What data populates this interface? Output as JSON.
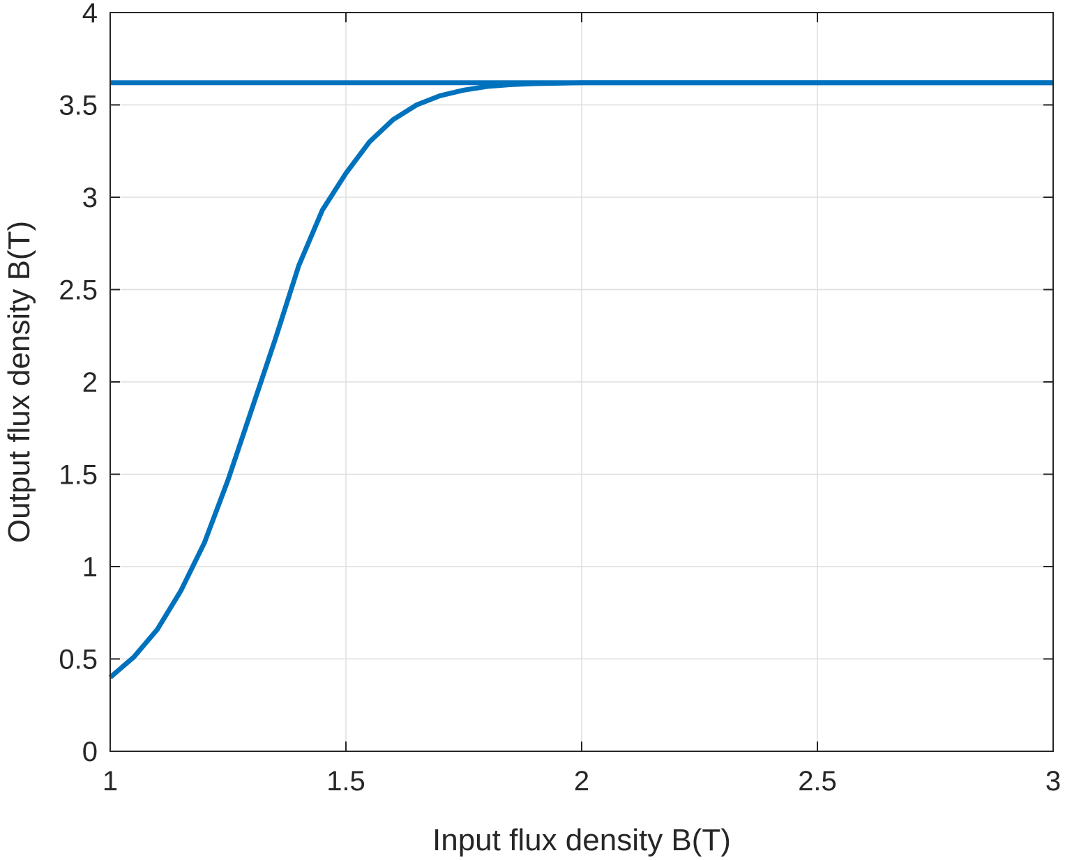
{
  "chart_data": {
    "type": "line",
    "title": "",
    "xlabel": "Input flux density B(T)",
    "ylabel": "Output flux density B(T)",
    "xlim": [
      1,
      3
    ],
    "ylim": [
      0,
      4
    ],
    "xticks": [
      1,
      1.5,
      2,
      2.5,
      3
    ],
    "xtick_labels": [
      "1",
      "1.5",
      "2",
      "2.5",
      "3"
    ],
    "yticks": [
      0,
      0.5,
      1,
      1.5,
      2,
      2.5,
      3,
      3.5,
      4
    ],
    "ytick_labels": [
      "0",
      "0.5",
      "1",
      "1.5",
      "2",
      "2.5",
      "3",
      "3.5",
      "4"
    ],
    "grid": true,
    "legend": "none",
    "line_color": "#0072BD",
    "series": [
      {
        "x": [
          1.0,
          1.05,
          1.1,
          1.15,
          1.2,
          1.25,
          1.3,
          1.35,
          1.4,
          1.45,
          1.5,
          1.55,
          1.6,
          1.65,
          1.7,
          1.75,
          1.8,
          1.85,
          1.9,
          2.0,
          2.2,
          2.5,
          2.8,
          3.0
        ],
        "values": [
          0.4,
          0.51,
          0.66,
          0.87,
          1.13,
          1.47,
          1.85,
          2.23,
          2.63,
          2.93,
          3.13,
          3.3,
          3.42,
          3.5,
          3.55,
          3.58,
          3.6,
          3.61,
          3.615,
          3.62,
          3.62,
          3.62,
          3.62,
          3.62
        ]
      },
      {
        "x": [
          1.0,
          3.0
        ],
        "values": [
          3.62,
          3.62
        ]
      }
    ]
  }
}
